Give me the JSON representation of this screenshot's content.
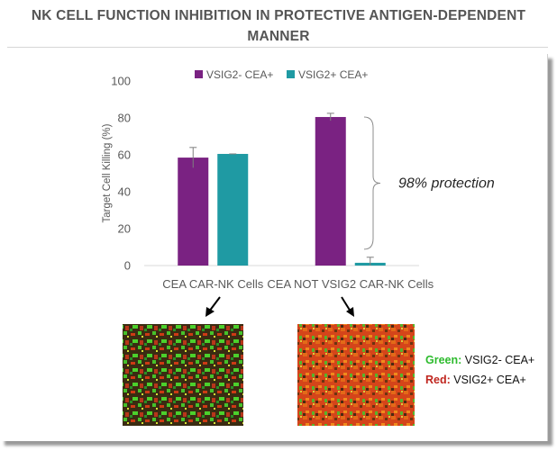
{
  "title_line1": "NK CELL FUNCTION INHIBITION IN PROTECTIVE ANTIGEN-DEPENDENT",
  "title_line2": "MANNER",
  "chart_data": {
    "type": "bar",
    "categories": [
      "CEA CAR-NK Cells",
      "CEA NOT VSIG2 CAR-NK Cells"
    ],
    "series": [
      {
        "name": "VSIG2- CEA+",
        "values": [
          58.5,
          80.5
        ],
        "errors": [
          5.5,
          2
        ],
        "color": "#7a2282"
      },
      {
        "name": "VSIG2+ CEA+",
        "values": [
          60.5,
          1.5
        ],
        "errors": [
          0,
          3
        ],
        "color": "#1f9aa3"
      }
    ],
    "ylabel": "Target Cell Killing (%)",
    "ylim": [
      0,
      100
    ],
    "yticks": [
      0,
      20,
      40,
      60,
      80,
      100
    ],
    "legend_position": "top",
    "annotation": "98% protection"
  },
  "micrograph_key": {
    "green_label": "Green:",
    "green_text": " VSIG2- CEA+",
    "red_label": "Red:",
    "red_text": " VSIG2+ CEA+",
    "green_color": "#2dbb2d",
    "red_color": "#c0261f"
  }
}
